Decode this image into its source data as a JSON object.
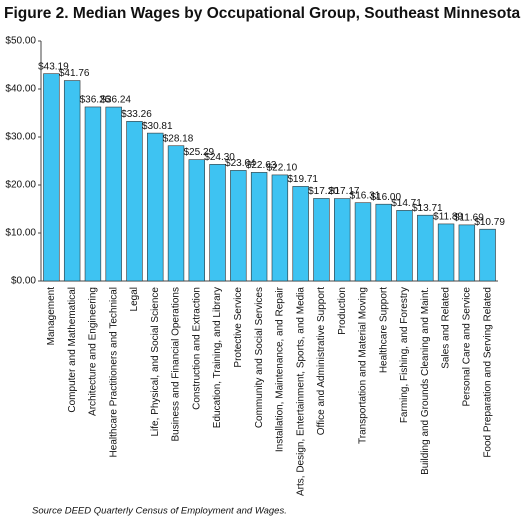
{
  "chart_data": {
    "type": "bar",
    "title": "Figure 2. Median Wages by Occupational Group, Southeast Minnesota",
    "source": "Source DEED Quarterly Census of Employment and Wages.",
    "categories": [
      "Management",
      "Computer and Mathematical",
      "Architecture and Engineering",
      "Healthcare Practitioners and Technical",
      "Legal",
      "Life, Physical, and Social Science",
      "Business and Financial Operations",
      "Construction and Extraction",
      "Education, Training, and Library",
      "Protective Service",
      "Community and Social Services",
      "Installation, Maintenance, and Repair",
      "Arts, Design, Entertainment, Sports, and Media",
      "Office and Administrative Support",
      "Production",
      "Transportation and Material Moving",
      "Healthcare Support",
      "Farming, Fishing, and Forestry",
      "Building and Grounds Cleaning and Maint.",
      "Sales and Related",
      "Personal Care and Service",
      "Food Preparation and Serving Related"
    ],
    "values": [
      43.19,
      41.76,
      36.26,
      36.24,
      33.26,
      30.81,
      28.18,
      25.29,
      24.3,
      23.04,
      22.63,
      22.1,
      19.71,
      17.2,
      17.17,
      16.31,
      16.0,
      14.71,
      13.71,
      11.89,
      11.69,
      10.79
    ],
    "value_labels": [
      "$43.19",
      "$41.76",
      "$36.26",
      "$36.24",
      "$33.26",
      "$30.81",
      "$28.18",
      "$25.29",
      "$24.30",
      "$23.04",
      "$22.63",
      "$22.10",
      "$19.71",
      "$17.20",
      "$17.17",
      "$16.31",
      "$16.00",
      "$14.71",
      "$13.71",
      "$11.89",
      "$11.69",
      "$10.79"
    ],
    "color": "#3ec3f2",
    "ylim": [
      0,
      50
    ],
    "yticks": [
      {
        "value": 0,
        "label": "$0.00"
      },
      {
        "value": 10,
        "label": "$10.00"
      },
      {
        "value": 20,
        "label": "$20.00"
      },
      {
        "value": 30,
        "label": "$30.00"
      },
      {
        "value": 40,
        "label": "$40.00"
      },
      {
        "value": 50,
        "label": "$50.00"
      }
    ],
    "grid": false
  }
}
